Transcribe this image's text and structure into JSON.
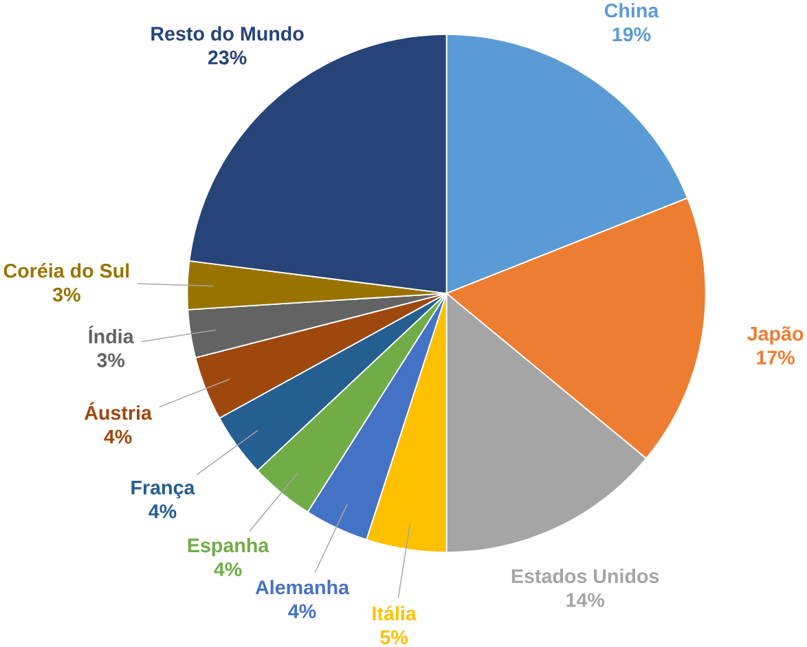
{
  "chart_data": {
    "type": "pie",
    "categories": [
      "China",
      "Japão",
      "Estados Unidos",
      "Itália",
      "Alemanha",
      "Espanha",
      "França",
      "Áustria",
      "Índia",
      "Coréia do Sul",
      "Resto do Mundo"
    ],
    "values": [
      19,
      17,
      14,
      5,
      4,
      4,
      4,
      4,
      3,
      3,
      23
    ],
    "value_labels": [
      "19%",
      "17%",
      "14%",
      "5%",
      "4%",
      "4%",
      "4%",
      "4%",
      "3%",
      "3%",
      "23%"
    ],
    "colors": [
      "#5b9bd5",
      "#ed7d31",
      "#a5a5a5",
      "#ffc000",
      "#4472c4",
      "#70ad47",
      "#255e91",
      "#9e480e",
      "#636363",
      "#997300",
      "#264478"
    ]
  }
}
